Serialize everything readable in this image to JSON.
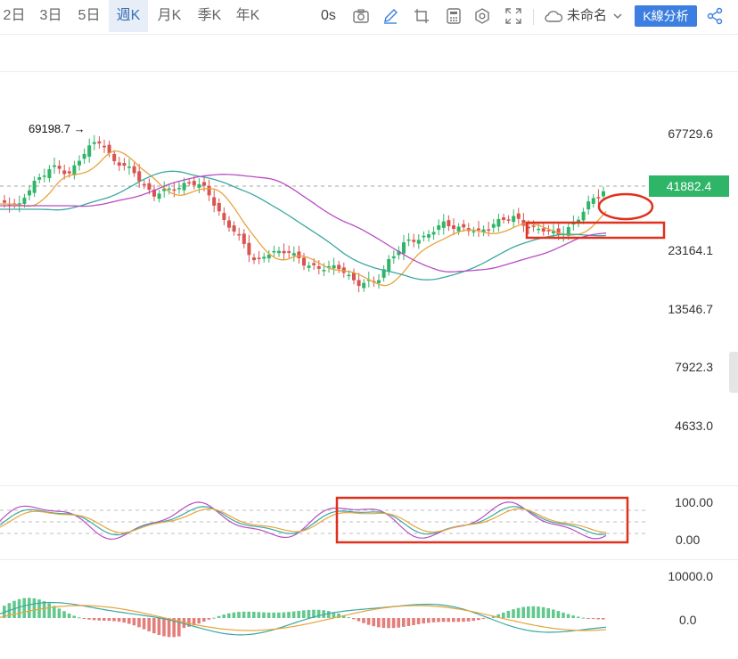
{
  "toolbar": {
    "timeframes": [
      {
        "label": "2日",
        "active": false
      },
      {
        "label": "3日",
        "active": false
      },
      {
        "label": "5日",
        "active": false
      },
      {
        "label": "週K",
        "active": true
      },
      {
        "label": "月K",
        "active": false
      },
      {
        "label": "季K",
        "active": false
      },
      {
        "label": "年K",
        "active": false
      }
    ],
    "interval_label": "0s",
    "icons": [
      "camera-icon",
      "pencil-icon",
      "crop-icon",
      "calculator-icon",
      "settings-hex-icon",
      "fullscreen-icon"
    ],
    "layout_name": "未命名",
    "kline_analysis_label": "K線分析",
    "share_icon": "share-icon"
  },
  "price_axis": {
    "labels": [
      "67729.6",
      "23164.1",
      "13546.7",
      "7922.3",
      "4633.0"
    ],
    "last_price": "41882.4",
    "max_marker": "69198.7 →"
  },
  "indicator_axis": {
    "stoch_labels": [
      "100.00",
      "0.00"
    ],
    "macd_labels": [
      "10000.0",
      "0.0"
    ]
  },
  "colors": {
    "up": "#2eb567",
    "down": "#d9534f",
    "ma_fast": "#e8a33d",
    "ma_mid": "#3aa8a0",
    "ma_slow": "#b84cc4",
    "annotation": "#e0301e",
    "active_tab_bg": "#e7eef8",
    "kline_button_bg": "#3d7fe0"
  }
}
